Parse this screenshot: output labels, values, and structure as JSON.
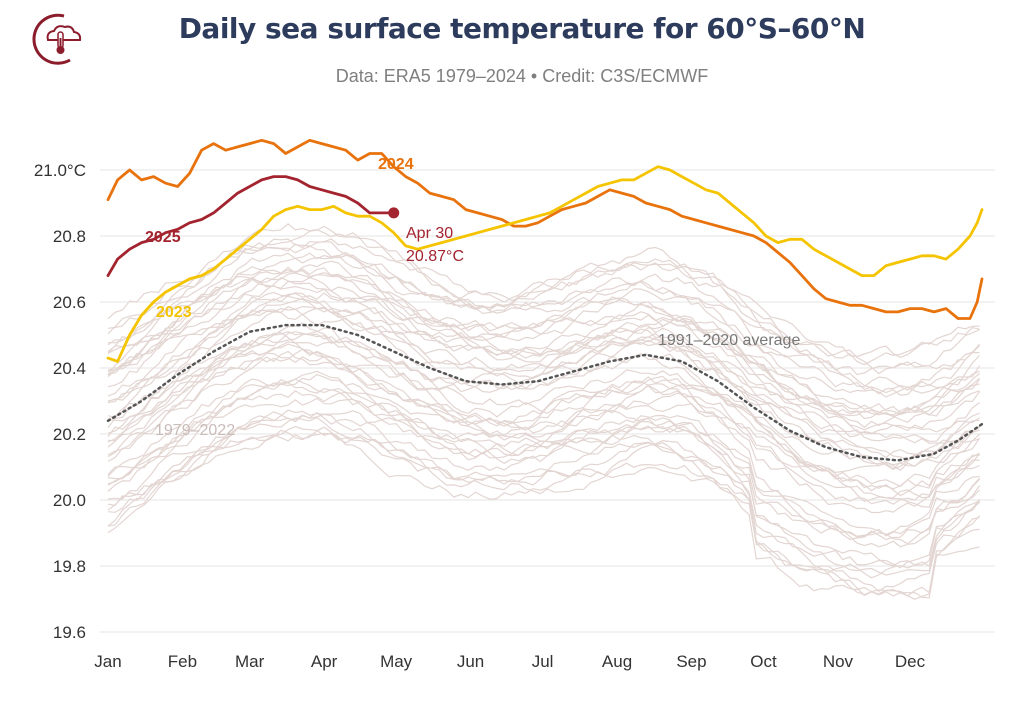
{
  "header": {
    "title": "Daily sea surface temperature for 60°S–60°N",
    "subtitle": "Data: ERA5 1979–2024 • Credit: C3S/ECMWF",
    "logo_icon": "thermometer-cloud-icon"
  },
  "colors": {
    "y2025": "#a3232e",
    "y2024": "#e8720c",
    "y2023": "#f5c400",
    "historical": "#e3d6d2",
    "average": "#555555",
    "grid": "#e6e6e6",
    "title": "#2d3b5c",
    "logo": "#8a1c2b"
  },
  "chart_data": {
    "type": "line",
    "title": "Daily sea surface temperature for 60°S–60°N",
    "xlabel": "",
    "ylabel": "",
    "ylim": [
      19.6,
      21.1
    ],
    "yticks": [
      19.6,
      19.8,
      20.0,
      20.2,
      20.4,
      20.6,
      20.8,
      21.0
    ],
    "ytick_labels": [
      "19.6",
      "19.8",
      "20.0",
      "20.2",
      "20.4",
      "20.6",
      "20.8",
      "21.0°C"
    ],
    "months": [
      "Jan",
      "Feb",
      "Mar",
      "Apr",
      "May",
      "Jun",
      "Jul",
      "Aug",
      "Sep",
      "Oct",
      "Nov",
      "Dec"
    ],
    "series": [
      {
        "name": "2024",
        "color": "#e8720c",
        "points": [
          [
            1,
            20.91
          ],
          [
            5,
            20.97
          ],
          [
            10,
            21.0
          ],
          [
            15,
            20.97
          ],
          [
            20,
            20.98
          ],
          [
            25,
            20.96
          ],
          [
            30,
            20.95
          ],
          [
            35,
            20.99
          ],
          [
            40,
            21.06
          ],
          [
            45,
            21.08
          ],
          [
            50,
            21.06
          ],
          [
            55,
            21.07
          ],
          [
            60,
            21.08
          ],
          [
            65,
            21.09
          ],
          [
            70,
            21.08
          ],
          [
            75,
            21.05
          ],
          [
            80,
            21.07
          ],
          [
            85,
            21.09
          ],
          [
            90,
            21.08
          ],
          [
            95,
            21.07
          ],
          [
            100,
            21.06
          ],
          [
            105,
            21.03
          ],
          [
            110,
            21.05
          ],
          [
            115,
            21.05
          ],
          [
            120,
            21.01
          ],
          [
            125,
            20.98
          ],
          [
            130,
            20.96
          ],
          [
            135,
            20.93
          ],
          [
            140,
            20.92
          ],
          [
            145,
            20.91
          ],
          [
            150,
            20.88
          ],
          [
            155,
            20.87
          ],
          [
            160,
            20.86
          ],
          [
            165,
            20.85
          ],
          [
            170,
            20.83
          ],
          [
            175,
            20.83
          ],
          [
            180,
            20.84
          ],
          [
            185,
            20.86
          ],
          [
            190,
            20.88
          ],
          [
            195,
            20.89
          ],
          [
            200,
            20.9
          ],
          [
            205,
            20.92
          ],
          [
            210,
            20.94
          ],
          [
            215,
            20.93
          ],
          [
            220,
            20.92
          ],
          [
            225,
            20.9
          ],
          [
            230,
            20.89
          ],
          [
            235,
            20.88
          ],
          [
            240,
            20.86
          ],
          [
            245,
            20.85
          ],
          [
            250,
            20.84
          ],
          [
            255,
            20.83
          ],
          [
            260,
            20.82
          ],
          [
            265,
            20.81
          ],
          [
            270,
            20.8
          ],
          [
            275,
            20.78
          ],
          [
            280,
            20.75
          ],
          [
            285,
            20.72
          ],
          [
            290,
            20.68
          ],
          [
            295,
            20.64
          ],
          [
            300,
            20.61
          ],
          [
            305,
            20.6
          ],
          [
            310,
            20.59
          ],
          [
            315,
            20.59
          ],
          [
            320,
            20.58
          ],
          [
            325,
            20.57
          ],
          [
            330,
            20.57
          ],
          [
            335,
            20.58
          ],
          [
            340,
            20.58
          ],
          [
            345,
            20.57
          ],
          [
            350,
            20.58
          ],
          [
            355,
            20.55
          ],
          [
            360,
            20.55
          ],
          [
            363,
            20.6
          ],
          [
            365,
            20.67
          ]
        ]
      },
      {
        "name": "2023",
        "color": "#f5c400",
        "points": [
          [
            1,
            20.43
          ],
          [
            5,
            20.42
          ],
          [
            10,
            20.5
          ],
          [
            15,
            20.56
          ],
          [
            20,
            20.6
          ],
          [
            25,
            20.63
          ],
          [
            30,
            20.65
          ],
          [
            35,
            20.67
          ],
          [
            40,
            20.68
          ],
          [
            45,
            20.7
          ],
          [
            50,
            20.73
          ],
          [
            55,
            20.76
          ],
          [
            60,
            20.79
          ],
          [
            65,
            20.82
          ],
          [
            70,
            20.86
          ],
          [
            75,
            20.88
          ],
          [
            80,
            20.89
          ],
          [
            85,
            20.88
          ],
          [
            90,
            20.88
          ],
          [
            95,
            20.89
          ],
          [
            100,
            20.87
          ],
          [
            105,
            20.86
          ],
          [
            110,
            20.86
          ],
          [
            115,
            20.84
          ],
          [
            120,
            20.81
          ],
          [
            125,
            20.77
          ],
          [
            130,
            20.76
          ],
          [
            135,
            20.77
          ],
          [
            140,
            20.78
          ],
          [
            145,
            20.79
          ],
          [
            150,
            20.8
          ],
          [
            155,
            20.81
          ],
          [
            160,
            20.82
          ],
          [
            165,
            20.83
          ],
          [
            170,
            20.84
          ],
          [
            175,
            20.85
          ],
          [
            180,
            20.86
          ],
          [
            185,
            20.87
          ],
          [
            190,
            20.89
          ],
          [
            195,
            20.91
          ],
          [
            200,
            20.93
          ],
          [
            205,
            20.95
          ],
          [
            210,
            20.96
          ],
          [
            215,
            20.97
          ],
          [
            220,
            20.97
          ],
          [
            225,
            20.99
          ],
          [
            230,
            21.01
          ],
          [
            235,
            21.0
          ],
          [
            240,
            20.98
          ],
          [
            245,
            20.96
          ],
          [
            250,
            20.94
          ],
          [
            255,
            20.93
          ],
          [
            260,
            20.9
          ],
          [
            265,
            20.87
          ],
          [
            270,
            20.84
          ],
          [
            275,
            20.8
          ],
          [
            280,
            20.78
          ],
          [
            285,
            20.79
          ],
          [
            290,
            20.79
          ],
          [
            295,
            20.76
          ],
          [
            300,
            20.74
          ],
          [
            305,
            20.72
          ],
          [
            310,
            20.7
          ],
          [
            315,
            20.68
          ],
          [
            320,
            20.68
          ],
          [
            325,
            20.71
          ],
          [
            330,
            20.72
          ],
          [
            335,
            20.73
          ],
          [
            340,
            20.74
          ],
          [
            345,
            20.74
          ],
          [
            350,
            20.73
          ],
          [
            355,
            20.76
          ],
          [
            360,
            20.8
          ],
          [
            363,
            20.84
          ],
          [
            365,
            20.88
          ]
        ]
      },
      {
        "name": "2025",
        "color": "#a3232e",
        "points": [
          [
            1,
            20.68
          ],
          [
            5,
            20.73
          ],
          [
            10,
            20.76
          ],
          [
            15,
            20.78
          ],
          [
            20,
            20.79
          ],
          [
            25,
            20.81
          ],
          [
            30,
            20.82
          ],
          [
            35,
            20.84
          ],
          [
            40,
            20.85
          ],
          [
            45,
            20.87
          ],
          [
            50,
            20.9
          ],
          [
            55,
            20.93
          ],
          [
            60,
            20.95
          ],
          [
            65,
            20.97
          ],
          [
            70,
            20.98
          ],
          [
            75,
            20.98
          ],
          [
            80,
            20.97
          ],
          [
            85,
            20.95
          ],
          [
            90,
            20.94
          ],
          [
            95,
            20.93
          ],
          [
            100,
            20.92
          ],
          [
            105,
            20.9
          ],
          [
            110,
            20.87
          ],
          [
            115,
            20.87
          ],
          [
            120,
            20.87
          ]
        ]
      },
      {
        "name": "1991–2020 average",
        "color": "#555555",
        "points": [
          [
            1,
            20.24
          ],
          [
            15,
            20.3
          ],
          [
            30,
            20.38
          ],
          [
            45,
            20.45
          ],
          [
            60,
            20.51
          ],
          [
            75,
            20.53
          ],
          [
            90,
            20.53
          ],
          [
            105,
            20.5
          ],
          [
            120,
            20.45
          ],
          [
            135,
            20.4
          ],
          [
            150,
            20.36
          ],
          [
            165,
            20.35
          ],
          [
            180,
            20.36
          ],
          [
            195,
            20.39
          ],
          [
            210,
            20.42
          ],
          [
            225,
            20.44
          ],
          [
            240,
            20.42
          ],
          [
            255,
            20.36
          ],
          [
            270,
            20.28
          ],
          [
            285,
            20.21
          ],
          [
            300,
            20.16
          ],
          [
            315,
            20.13
          ],
          [
            330,
            20.12
          ],
          [
            345,
            20.14
          ],
          [
            355,
            20.18
          ],
          [
            365,
            20.23
          ]
        ]
      }
    ],
    "historical_range": {
      "name": "1979–2022",
      "years": 44,
      "note": "individual daily series for each year 1979–2022"
    },
    "annotations": {
      "label_2025": "2025",
      "label_2024": "2024",
      "label_2023": "2023",
      "label_average": "1991–2020 average",
      "label_historical": "1979–2022",
      "last_point_date": "Apr 30",
      "last_point_value": "20.87°C",
      "last_point": [
        120,
        20.87
      ]
    }
  }
}
